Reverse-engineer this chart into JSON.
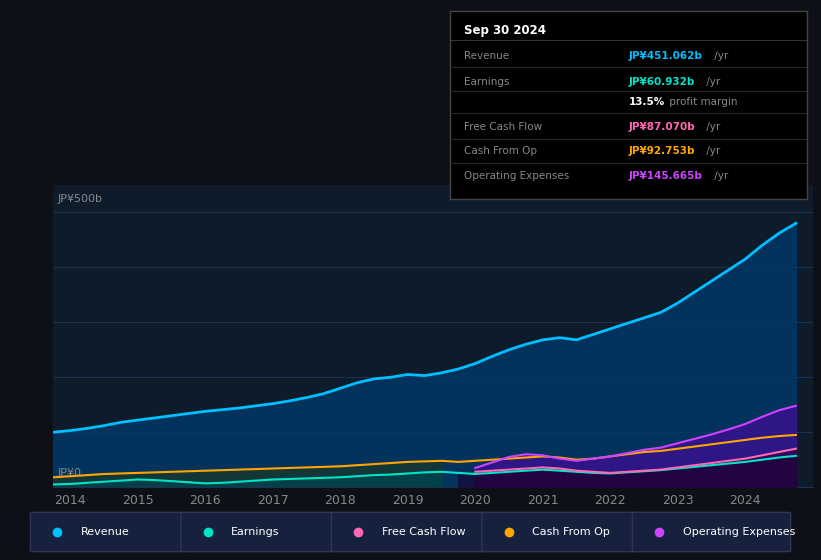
{
  "bg_color": "#0d1117",
  "chart_bg": "#0d1b2a",
  "y_label": "JP¥500b",
  "y_zero_label": "JP¥0",
  "x_ticks": [
    2014,
    2015,
    2016,
    2017,
    2018,
    2019,
    2020,
    2021,
    2022,
    2023,
    2024
  ],
  "tooltip_title": "Sep 30 2024",
  "legend": [
    {
      "label": "Revenue",
      "color": "#00bfff"
    },
    {
      "label": "Earnings",
      "color": "#00e5c8"
    },
    {
      "label": "Free Cash Flow",
      "color": "#ff69b4"
    },
    {
      "label": "Cash From Op",
      "color": "#ffa500"
    },
    {
      "label": "Operating Expenses",
      "color": "#cc44ff"
    }
  ],
  "years": [
    2013.75,
    2014.0,
    2014.25,
    2014.5,
    2014.75,
    2015.0,
    2015.25,
    2015.5,
    2015.75,
    2016.0,
    2016.25,
    2016.5,
    2016.75,
    2017.0,
    2017.25,
    2017.5,
    2017.75,
    2018.0,
    2018.25,
    2018.5,
    2018.75,
    2019.0,
    2019.25,
    2019.5,
    2019.75,
    2020.0,
    2020.25,
    2020.5,
    2020.75,
    2021.0,
    2021.25,
    2021.5,
    2021.75,
    2022.0,
    2022.25,
    2022.5,
    2022.75,
    2023.0,
    2023.25,
    2023.5,
    2023.75,
    2024.0,
    2024.25,
    2024.5,
    2024.75
  ],
  "revenue": [
    100,
    103,
    107,
    112,
    118,
    122,
    126,
    130,
    134,
    138,
    141,
    144,
    148,
    152,
    157,
    163,
    170,
    180,
    190,
    197,
    200,
    205,
    203,
    208,
    215,
    225,
    238,
    250,
    260,
    268,
    272,
    268,
    278,
    288,
    298,
    308,
    318,
    335,
    355,
    375,
    395,
    415,
    440,
    462,
    480
  ],
  "earnings": [
    5,
    6,
    8,
    10,
    12,
    14,
    13,
    11,
    9,
    7,
    8,
    10,
    12,
    14,
    15,
    16,
    17,
    18,
    20,
    22,
    23,
    25,
    27,
    28,
    26,
    24,
    26,
    28,
    30,
    32,
    30,
    28,
    26,
    25,
    27,
    29,
    31,
    34,
    37,
    40,
    43,
    46,
    50,
    54,
    57
  ],
  "free_cash_flow": [
    null,
    null,
    null,
    null,
    null,
    null,
    null,
    null,
    null,
    null,
    null,
    null,
    null,
    null,
    null,
    null,
    null,
    null,
    null,
    null,
    null,
    null,
    null,
    null,
    null,
    28,
    30,
    32,
    34,
    36,
    34,
    30,
    28,
    26,
    28,
    30,
    32,
    36,
    40,
    44,
    48,
    52,
    58,
    64,
    70
  ],
  "cash_from_op": [
    18,
    20,
    22,
    24,
    25,
    26,
    27,
    28,
    29,
    30,
    31,
    32,
    33,
    34,
    35,
    36,
    37,
    38,
    40,
    42,
    44,
    46,
    47,
    48,
    46,
    48,
    50,
    52,
    54,
    56,
    54,
    50,
    52,
    56,
    60,
    64,
    66,
    70,
    74,
    78,
    82,
    86,
    90,
    93,
    95
  ],
  "op_expenses": [
    null,
    null,
    null,
    null,
    null,
    null,
    null,
    null,
    null,
    null,
    null,
    null,
    null,
    null,
    null,
    null,
    null,
    null,
    null,
    null,
    null,
    null,
    null,
    null,
    null,
    35,
    45,
    55,
    60,
    58,
    52,
    48,
    52,
    56,
    62,
    68,
    72,
    80,
    88,
    96,
    105,
    115,
    128,
    140,
    148
  ],
  "ylim": [
    0,
    550
  ],
  "xlim": [
    2013.75,
    2025.0
  ],
  "grid_color": "#1e3050",
  "highlight_start": 2019.75
}
